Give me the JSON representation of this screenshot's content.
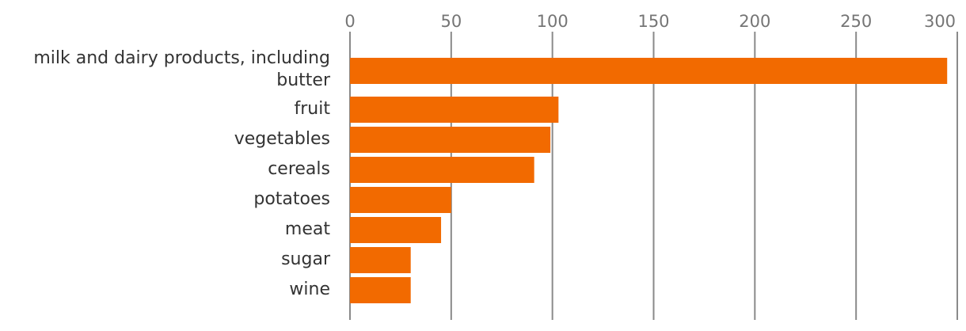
{
  "colors": {
    "bar": "#f26a00",
    "grid": "#8a8a8a",
    "tick_text": "#757575",
    "label_text": "#333333",
    "background": "#ffffff"
  },
  "chart_data": {
    "type": "bar",
    "orientation": "horizontal",
    "x_axis_position": "top",
    "grid": true,
    "legend": "none",
    "title": "",
    "xlabel": "",
    "ylabel": "",
    "xlim": [
      0,
      300
    ],
    "x_ticks": [
      "0",
      "50",
      "100",
      "150",
      "200",
      "250",
      "300"
    ],
    "categories": [
      "milk and dairy products, including butter",
      "fruit",
      "vegetables",
      "cereals",
      "potatoes",
      "meat",
      "sugar",
      "wine"
    ],
    "values": [
      295,
      103,
      99,
      91,
      50,
      45,
      30,
      30
    ]
  }
}
